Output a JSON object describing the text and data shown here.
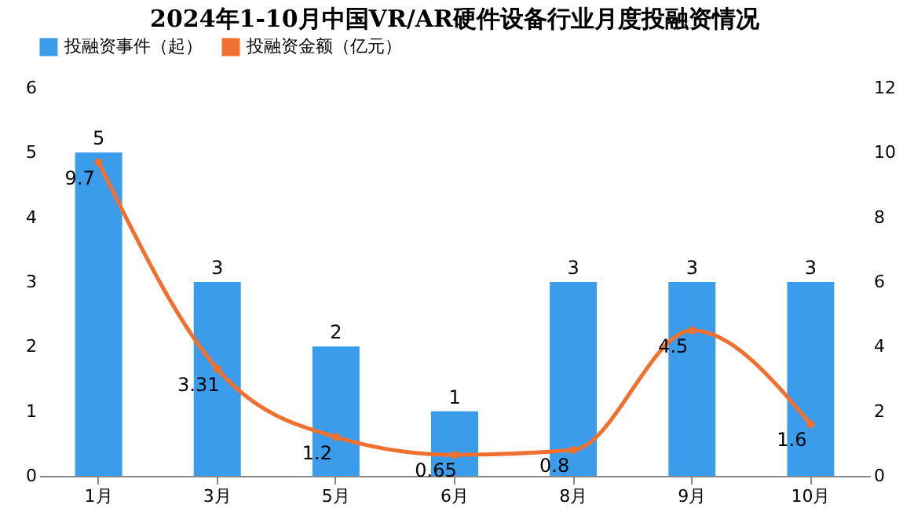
{
  "chart_data": {
    "type": "bar",
    "title": "2024年1-10月中国VR/AR硬件设备行业月度投融资情况",
    "categories": [
      "1月",
      "3月",
      "5月",
      "6月",
      "8月",
      "9月",
      "10月"
    ],
    "series": [
      {
        "name": "投融资事件（起）",
        "color": "#3c9cec",
        "values": [
          5,
          3,
          2,
          1,
          3,
          3,
          3
        ]
      },
      {
        "name": "投融资金额（亿元）",
        "color": "#f07030",
        "type": "line",
        "axis": "y2",
        "values": [
          9.7,
          3.31,
          1.2,
          0.65,
          0.8,
          4.5,
          1.6
        ]
      }
    ],
    "ylim": [
      0,
      6
    ],
    "yticks": [
      0,
      1,
      2,
      3,
      4,
      5,
      6
    ],
    "y2lim": [
      0,
      12
    ],
    "y2ticks": [
      0,
      2,
      4,
      6,
      8,
      10,
      12
    ],
    "data_labels": true,
    "legend": "top",
    "grid": false,
    "marker": "circle"
  }
}
